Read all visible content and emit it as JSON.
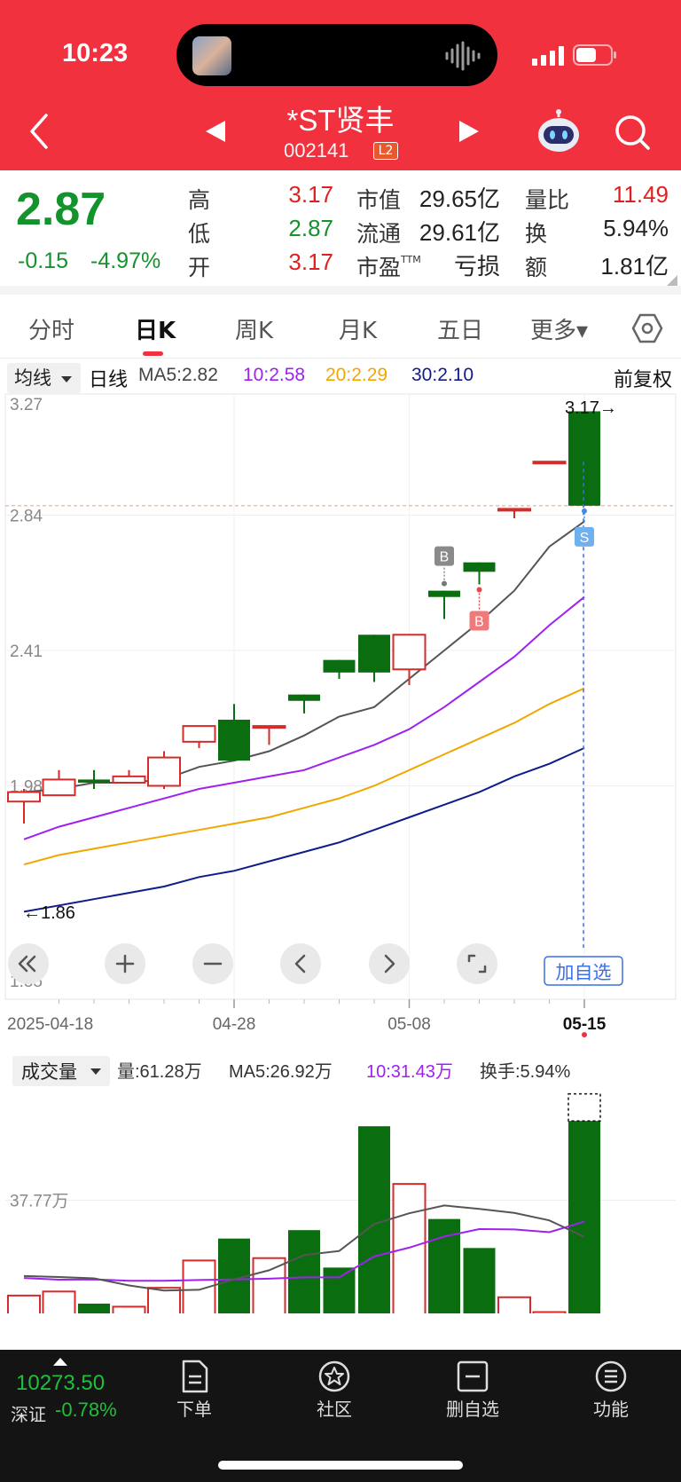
{
  "status_bar": {
    "time": "10:23"
  },
  "header": {
    "stock_name": "*ST贤丰",
    "stock_code": "002141",
    "level_badge": "L2"
  },
  "quote": {
    "price": "2.87",
    "change": "-0.15",
    "change_pct": "-4.97%",
    "fields": [
      {
        "label": "高",
        "value": "3.17",
        "tone": "red"
      },
      {
        "label": "低",
        "value": "2.87",
        "tone": "green"
      },
      {
        "label": "开",
        "value": "3.17",
        "tone": "red"
      },
      {
        "label": "市值",
        "value": "29.65亿",
        "tone": "dark"
      },
      {
        "label": "流通",
        "value": "29.61亿",
        "tone": "dark"
      },
      {
        "label": "市盈",
        "label_sup": "TTM",
        "value": "亏损",
        "tone": "dark"
      },
      {
        "label": "量比",
        "value": "11.49",
        "tone": "red"
      },
      {
        "label": "换",
        "value": "5.94%",
        "tone": "dark"
      },
      {
        "label": "额",
        "value": "1.81亿",
        "tone": "dark"
      }
    ]
  },
  "tabs": [
    "分时",
    "日K",
    "周K",
    "月K",
    "五日",
    "更多▾"
  ],
  "active_tab": "日K",
  "ma_bar": {
    "selector": "均线",
    "period": "日线",
    "ma5": "MA5:2.82",
    "ma10": "10:2.58",
    "ma20": "20:2.29",
    "ma30": "30:2.10",
    "adjust": "前复权"
  },
  "colors": {
    "up": "#d52b2b",
    "down": "#0a6e10",
    "ma5": "#555555",
    "ma10": "#a020f0",
    "ma20": "#f0a800",
    "ma30": "#101c8c"
  },
  "kline_controls": [
    "double-left-icon",
    "zoom-in-icon",
    "zoom-out-icon",
    "chevron-left-icon",
    "chevron-right-icon",
    "fullscreen-icon"
  ],
  "add_watch_label": "加自选",
  "chart_data": [
    {
      "type": "candlestick",
      "title": "",
      "price_axis_labels": [
        "3.27",
        "2.84",
        "2.41",
        "1.98",
        "1.55"
      ],
      "ylim": [
        1.55,
        3.27
      ],
      "date_labels": [
        "2025-04-18",
        "04-28",
        "05-08",
        "05-15"
      ],
      "dates": [
        "04-18",
        "04-21",
        "04-22",
        "04-23",
        "04-24",
        "04-25",
        "04-28",
        "04-29",
        "04-30",
        "05-06",
        "05-07",
        "05-08",
        "05-09",
        "05-12",
        "05-13",
        "05-14",
        "05-15"
      ],
      "candles": [
        {
          "open": 1.93,
          "close": 1.96,
          "high": 1.97,
          "low": 1.86
        },
        {
          "open": 1.95,
          "close": 2.0,
          "high": 2.03,
          "low": 1.95
        },
        {
          "open": 2.0,
          "close": 1.99,
          "high": 2.03,
          "low": 1.97
        },
        {
          "open": 1.99,
          "close": 2.01,
          "high": 2.03,
          "low": 1.99
        },
        {
          "open": 1.98,
          "close": 2.07,
          "high": 2.09,
          "low": 1.97
        },
        {
          "open": 2.12,
          "close": 2.17,
          "high": 2.17,
          "low": 2.1
        },
        {
          "open": 2.19,
          "close": 2.06,
          "high": 2.24,
          "low": 2.06
        },
        {
          "open": 2.17,
          "close": 2.17,
          "high": 2.17,
          "low": 2.11
        },
        {
          "open": 2.27,
          "close": 2.25,
          "high": 2.27,
          "low": 2.21
        },
        {
          "open": 2.38,
          "close": 2.34,
          "high": 2.38,
          "low": 2.32
        },
        {
          "open": 2.46,
          "close": 2.34,
          "high": 2.46,
          "low": 2.31
        },
        {
          "open": 2.35,
          "close": 2.46,
          "high": 2.46,
          "low": 2.3
        },
        {
          "open": 2.6,
          "close": 2.58,
          "high": 2.6,
          "low": 2.51
        },
        {
          "open": 2.69,
          "close": 2.66,
          "high": 2.69,
          "low": 2.62
        },
        {
          "open": 2.86,
          "close": 2.86,
          "high": 2.86,
          "low": 2.83
        },
        {
          "open": 3.01,
          "close": 3.01,
          "high": 3.01,
          "low": 3.01
        },
        {
          "open": 3.17,
          "close": 2.87,
          "high": 3.17,
          "low": 2.87
        }
      ],
      "ma_lines": {
        "ma5": [
          1.96,
          1.97,
          1.99,
          1.99,
          2.0,
          2.04,
          2.06,
          2.09,
          2.14,
          2.2,
          2.23,
          2.32,
          2.41,
          2.5,
          2.6,
          2.74,
          2.82
        ],
        "ma10": [
          1.81,
          1.85,
          1.88,
          1.91,
          1.94,
          1.97,
          1.99,
          2.01,
          2.03,
          2.07,
          2.11,
          2.16,
          2.23,
          2.31,
          2.39,
          2.49,
          2.58
        ],
        "ma20": [
          1.73,
          1.76,
          1.78,
          1.8,
          1.82,
          1.84,
          1.86,
          1.88,
          1.91,
          1.94,
          1.98,
          2.03,
          2.08,
          2.13,
          2.18,
          2.24,
          2.29
        ],
        "ma30": [
          1.58,
          1.6,
          1.62,
          1.64,
          1.66,
          1.69,
          1.71,
          1.74,
          1.77,
          1.8,
          1.84,
          1.88,
          1.92,
          1.96,
          2.01,
          2.05,
          2.1
        ]
      },
      "annotations": [
        {
          "text": "3.17→",
          "type": "max-price"
        },
        {
          "text": "←1.86",
          "type": "min-price"
        }
      ],
      "signals": [
        {
          "label": "B",
          "index": 12,
          "kind": "buy-above"
        },
        {
          "label": "B",
          "index": 13,
          "kind": "buy-below"
        },
        {
          "label": "S",
          "index": 16,
          "kind": "sell"
        }
      ],
      "current_price_line": 2.87
    },
    {
      "type": "bar",
      "title": "",
      "selector": "成交量",
      "info": {
        "volume": "量:61.28万",
        "ma5": "MA5:26.92万",
        "ma10": "10:31.43万",
        "turnover": "换手:5.94%"
      },
      "axis_label": "37.77万",
      "unit": "万",
      "values": [
        9.5,
        10.7,
        7.1,
        6.2,
        11.8,
        19.9,
        26.4,
        20.6,
        28.9,
        17.8,
        59.7,
        42.6,
        32.2,
        23.6,
        9.0,
        4.6,
        61.28
      ],
      "ma5": [
        15.3,
        15.0,
        14.6,
        12.5,
        11.0,
        11.2,
        14.3,
        17.0,
        21.5,
        22.7,
        30.7,
        33.9,
        36.2,
        35.2,
        34.0,
        31.8,
        26.92
      ],
      "ma10": [
        14.7,
        14.2,
        14.3,
        13.9,
        13.9,
        14.1,
        14.3,
        14.5,
        14.9,
        14.9,
        21.1,
        23.7,
        27.0,
        29.2,
        29.1,
        28.3,
        31.43
      ],
      "ylim": [
        0,
        70
      ]
    }
  ],
  "bottom_bar": {
    "index_value": "10273.50",
    "index_name": "深证",
    "index_change": "-0.78%",
    "items": [
      {
        "label": "下单",
        "icon": "document-icon"
      },
      {
        "label": "社区",
        "icon": "community-icon"
      },
      {
        "label": "删自选",
        "icon": "remove-watch-icon"
      },
      {
        "label": "功能",
        "icon": "menu-icon"
      }
    ]
  }
}
